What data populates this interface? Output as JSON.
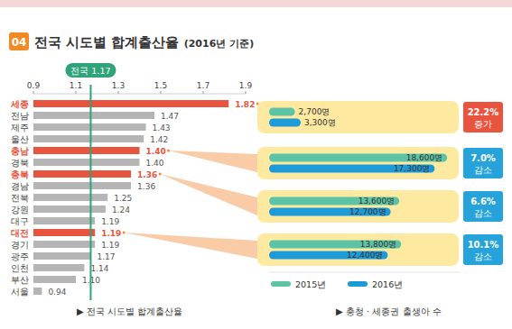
{
  "chart_data": [
    {
      "type": "bar",
      "orientation": "horizontal",
      "section": "04",
      "title": "전국 시도별 합계출산율 (2016년 기준)",
      "caption": "▶ 전국 시도별 합계출산율",
      "categories": [
        "세종",
        "전남",
        "제주",
        "울산",
        "충남",
        "경북",
        "충북",
        "경남",
        "전북",
        "강원",
        "대구",
        "대전",
        "경기",
        "광주",
        "인천",
        "부산",
        "서울"
      ],
      "values": [
        1.82,
        1.47,
        1.43,
        1.42,
        1.4,
        1.4,
        1.36,
        1.36,
        1.25,
        1.24,
        1.19,
        1.19,
        1.19,
        1.17,
        1.14,
        1.1,
        0.94
      ],
      "value_labels": [
        "1.82",
        "1.47",
        "1.43",
        "1.42",
        "1.40",
        "1.40",
        "1.36",
        "1.36",
        "1.25",
        "1.24",
        "1.19",
        "1.19",
        "1.19",
        "1.17",
        "1.14",
        "1.10",
        "0.94"
      ],
      "colors": [
        "#e8543e",
        "#b5b5b5",
        "#b5b5b5",
        "#b5b5b5",
        "#e8543e",
        "#b5b5b5",
        "#e8543e",
        "#b5b5b5",
        "#b5b5b5",
        "#b5b5b5",
        "#b5b5b5",
        "#e8543e",
        "#b5b5b5",
        "#b5b5b5",
        "#b5b5b5",
        "#b5b5b5",
        "#b5b5b5"
      ],
      "xlim": [
        0.9,
        1.9
      ],
      "xticks": [
        0.9,
        1.1,
        1.3,
        1.5,
        1.7,
        1.9
      ],
      "grid": false,
      "data_labels": true,
      "reference": {
        "value": 1.17,
        "label": "전국 1.17"
      }
    },
    {
      "type": "bar",
      "orientation": "horizontal",
      "caption": "▶ 충청 · 세종권 출생아 수",
      "categories": [
        null,
        null,
        null,
        null
      ],
      "series": [
        {
          "name": "2015년",
          "color": "#5cc3a4",
          "values": [
            2700,
            18600,
            13600,
            13800
          ],
          "value_labels": [
            "2,700명",
            "18,600명",
            "13,600명",
            "13,800명"
          ]
        },
        {
          "name": "2016년",
          "color": "#1d9ad8",
          "values": [
            3300,
            17300,
            12700,
            12400
          ],
          "value_labels": [
            "3,300명",
            "17,300명",
            "12,700명",
            "12,400명"
          ]
        }
      ],
      "changes": [
        "22.2%",
        "7.0%",
        "6.6%",
        "10.1%"
      ],
      "change_words": [
        "증가",
        "감소",
        "감소",
        "감소"
      ],
      "xlim": [
        0,
        20000
      ],
      "tick_labels": false,
      "data_labels": true,
      "legend": "bottom"
    }
  ]
}
